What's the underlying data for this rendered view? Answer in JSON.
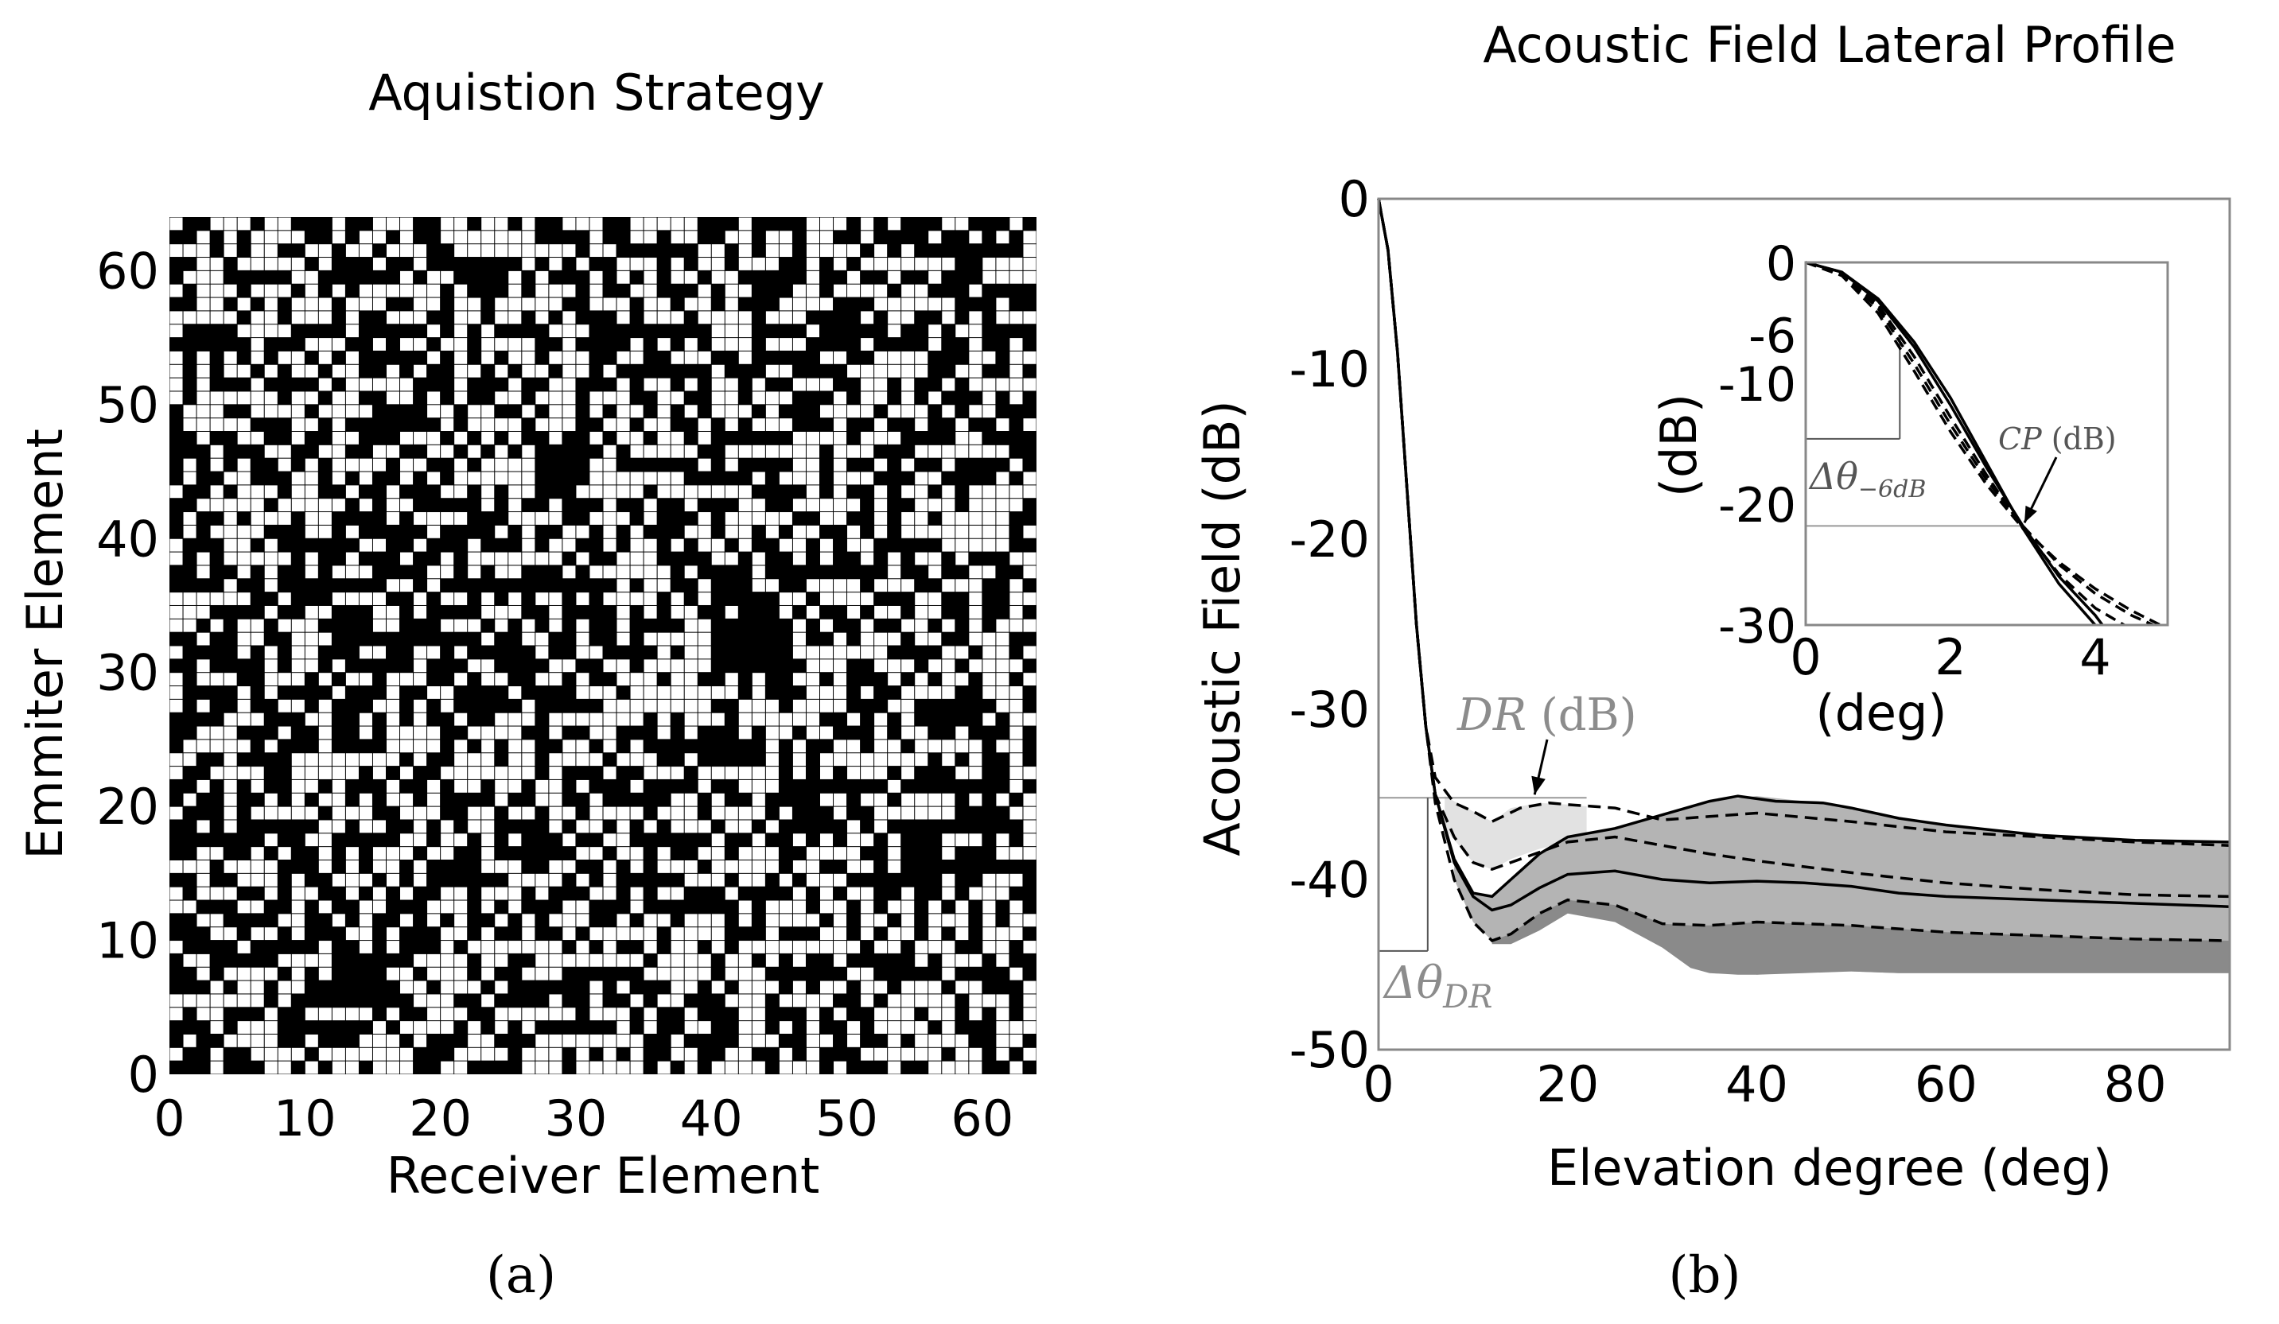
{
  "colors": {
    "background": "#ffffff",
    "axis": "#000000",
    "frame_gray": "#888888",
    "grid_cell_on": "#ffffff",
    "grid_cell_off": "#000000",
    "band_light": "#e2e2e2",
    "band_mid": "#b4b4b4",
    "band_dark": "#8a8a8a",
    "annotation_gray": "#8c8c8c"
  },
  "panel_labels": {
    "a": "(a)",
    "b": "(b)"
  },
  "chart_data": [
    {
      "type": "heatmap",
      "title": "Aquistion Strategy",
      "xlabel": "Receiver Element",
      "ylabel": "Emmiter Element",
      "xlim": [
        0,
        64
      ],
      "ylim": [
        0,
        64
      ],
      "grid_size": [
        64,
        64
      ],
      "fill_fraction": 0.5,
      "values_note_visible": "",
      "xticks": [
        0,
        10,
        20,
        30,
        40,
        50,
        60
      ],
      "yticks": [
        0,
        10,
        20,
        30,
        40,
        50,
        60
      ]
    },
    {
      "type": "line",
      "title": "Acoustic Field Lateral Profile",
      "xlabel": "Elevation degree (deg)",
      "ylabel": "Acoustic Field (dB)",
      "xlim": [
        0,
        90
      ],
      "ylim": [
        -50,
        0
      ],
      "xticks": [
        0,
        20,
        40,
        60,
        80
      ],
      "yticks": [
        0,
        -10,
        -20,
        -30,
        -40,
        -50
      ],
      "series": [
        {
          "style": "solid",
          "x": [
            0,
            1,
            2,
            3,
            4,
            5,
            6,
            8,
            10,
            12,
            14,
            17,
            20,
            25,
            30,
            35,
            40,
            45,
            50,
            55,
            60,
            70,
            80,
            90
          ],
          "y": [
            0,
            -3,
            -9,
            -17,
            -25,
            -31,
            -35,
            -39,
            -41,
            -41.8,
            -41.5,
            -40.5,
            -39.7,
            -39.5,
            -40,
            -40.2,
            -40.1,
            -40.2,
            -40.4,
            -40.8,
            -41,
            -41.2,
            -41.4,
            -41.6
          ]
        },
        {
          "style": "solid",
          "x": [
            0,
            1,
            2,
            3,
            4,
            5,
            6,
            8,
            10,
            12,
            14,
            17,
            20,
            25,
            30,
            35,
            38,
            42,
            47,
            50,
            55,
            60,
            70,
            80,
            90
          ],
          "y": [
            0,
            -3,
            -9,
            -17,
            -25,
            -31,
            -35,
            -38.8,
            -40.8,
            -41,
            -40,
            -38.5,
            -37.5,
            -37,
            -36.2,
            -35.4,
            -35.1,
            -35.4,
            -35.5,
            -35.8,
            -36.4,
            -36.8,
            -37.4,
            -37.7,
            -37.8
          ]
        },
        {
          "style": "dashed",
          "x": [
            0,
            1,
            2,
            3,
            4,
            5,
            6,
            8,
            10,
            12,
            15,
            18,
            20,
            25,
            30,
            35,
            40,
            50,
            60,
            70,
            80,
            90
          ],
          "y": [
            0,
            -3,
            -9,
            -17,
            -25,
            -31,
            -34,
            -35.5,
            -36,
            -36.6,
            -35.8,
            -35.5,
            -35.6,
            -35.8,
            -36.5,
            -36.3,
            -36.1,
            -36.6,
            -37.2,
            -37.5,
            -37.8,
            -38
          ]
        },
        {
          "style": "dashed",
          "x": [
            0,
            1,
            2,
            3,
            4,
            5,
            6,
            8,
            10,
            12,
            15,
            18,
            20,
            25,
            30,
            35,
            40,
            50,
            60,
            70,
            80,
            90
          ],
          "y": [
            0,
            -3,
            -9,
            -17,
            -25,
            -31,
            -35,
            -37.5,
            -39,
            -39.4,
            -38.8,
            -38.2,
            -37.8,
            -37.5,
            -38,
            -38.5,
            -38.9,
            -39.6,
            -40.2,
            -40.6,
            -40.9,
            -41
          ]
        },
        {
          "style": "dashed",
          "x": [
            0,
            1,
            2,
            3,
            4,
            5,
            6,
            8,
            10,
            12,
            14,
            17,
            20,
            25,
            30,
            35,
            40,
            50,
            60,
            70,
            80,
            90
          ],
          "y": [
            0,
            -3,
            -9,
            -17,
            -25,
            -31,
            -35.5,
            -40,
            -42.5,
            -43.6,
            -43.2,
            -42,
            -41.2,
            -41.5,
            -42.6,
            -42.7,
            -42.5,
            -42.7,
            -43.1,
            -43.3,
            -43.5,
            -43.6
          ]
        }
      ],
      "bands": [
        {
          "shade": "light",
          "x": [
            7,
            10,
            12,
            14,
            17,
            20,
            22
          ],
          "upper": [
            -35.1,
            -36,
            -36.6,
            -35.8,
            -35.5,
            -35.6,
            -35.7
          ],
          "lower": [
            -37,
            -39,
            -39.4,
            -38.8,
            -38.2,
            -37.8,
            -37.6
          ]
        },
        {
          "shade": "mid",
          "x": [
            8,
            10,
            12,
            14,
            17,
            20,
            25,
            30,
            35,
            40,
            45,
            50,
            55,
            60,
            70,
            80,
            90
          ],
          "upper": [
            -38.8,
            -40.8,
            -41,
            -40,
            -38.5,
            -37.5,
            -37,
            -36.2,
            -35.4,
            -35.1,
            -35.4,
            -35.8,
            -36.4,
            -36.8,
            -37.4,
            -37.7,
            -37.8
          ],
          "lower": [
            -40,
            -42.5,
            -43.6,
            -43.6,
            -42.5,
            -41.5,
            -41.5,
            -43,
            -45,
            -45.6,
            -45.4,
            -45.4,
            -45.5,
            -45.5,
            -45.5,
            -45.5,
            -45.5
          ]
        },
        {
          "shade": "dark",
          "x": [
            12,
            14,
            17,
            20,
            25,
            30,
            33,
            35,
            38,
            40,
            45,
            50,
            55,
            60,
            70,
            80,
            90
          ],
          "upper": [
            -43.6,
            -43.2,
            -42,
            -41.2,
            -41.5,
            -42.6,
            -42.7,
            -42.7,
            -42.6,
            -42.5,
            -42.6,
            -42.7,
            -42.9,
            -43.1,
            -43.3,
            -43.5,
            -43.6
          ],
          "lower": [
            -43.8,
            -43.8,
            -43,
            -42,
            -42.5,
            -44,
            -45.2,
            -45.5,
            -45.6,
            -45.6,
            -45.5,
            -45.4,
            -45.5,
            -45.5,
            -45.5,
            -45.5,
            -45.5
          ]
        }
      ],
      "annotations": {
        "dr_label_italic": "DR",
        "dr_label_unit": " (dB)",
        "dtheta_dr_label": "Δθ",
        "dtheta_dr_sub": "DR",
        "dr_level_db": -35.2,
        "dr_floor_db": -44.2,
        "dtheta_dr_deg": 5.2
      },
      "inset": {
        "type": "line",
        "xlabel": "(deg)",
        "ylabel": "(dB)",
        "xlim": [
          0,
          5
        ],
        "ylim": [
          -30,
          0
        ],
        "xticks": [
          0,
          2,
          4
        ],
        "ytick_labels": [
          "0",
          "-6",
          "-10",
          "-20",
          "-30"
        ],
        "ytick_values": [
          0,
          -6,
          -10,
          -20,
          -30
        ],
        "series": [
          {
            "style": "solid",
            "x": [
              0,
              0.5,
              1,
              1.5,
              2,
              2.5,
              3,
              3.5,
              4
            ],
            "y": [
              0,
              -0.8,
              -3,
              -6.6,
              -11.2,
              -16.6,
              -22,
              -26.6,
              -30
            ]
          },
          {
            "style": "solid",
            "x": [
              0,
              0.5,
              1,
              1.5,
              2,
              2.5,
              3,
              3.5,
              4,
              4.1
            ],
            "y": [
              0,
              -0.8,
              -3.2,
              -7,
              -11.8,
              -17,
              -21.8,
              -26,
              -29.2,
              -30
            ]
          },
          {
            "style": "dashed",
            "x": [
              0,
              0.5,
              1,
              1.5,
              2,
              2.5,
              3,
              3.5,
              4,
              4.5,
              4.8
            ],
            "y": [
              0,
              -1,
              -3.8,
              -8.4,
              -13.4,
              -18,
              -21.8,
              -25,
              -27.4,
              -29.2,
              -30
            ]
          },
          {
            "style": "dashed",
            "x": [
              0,
              0.5,
              1,
              1.5,
              2,
              2.5,
              3,
              3.5,
              4,
              4.5,
              4.9
            ],
            "y": [
              0,
              -1.1,
              -4.2,
              -9,
              -14,
              -18.4,
              -22,
              -24.8,
              -27,
              -28.8,
              -30
            ]
          },
          {
            "style": "dashed",
            "x": [
              0,
              0.5,
              1,
              1.5,
              2,
              2.5,
              3,
              3.5,
              4,
              4.4
            ],
            "y": [
              0,
              -0.9,
              -3.5,
              -7.8,
              -12.8,
              -17.6,
              -22,
              -25.8,
              -28.6,
              -30
            ]
          }
        ],
        "annotations": {
          "dtheta_label": "Δθ",
          "dtheta_sub": "−6dB",
          "cp_label_italic": "CP",
          "cp_label_unit": " (dB)",
          "minus6_level_db": -14.6,
          "minus6_width_deg": 1.3,
          "cp_level_db": -21.8,
          "cp_x_deg": 3
        }
      }
    }
  ]
}
